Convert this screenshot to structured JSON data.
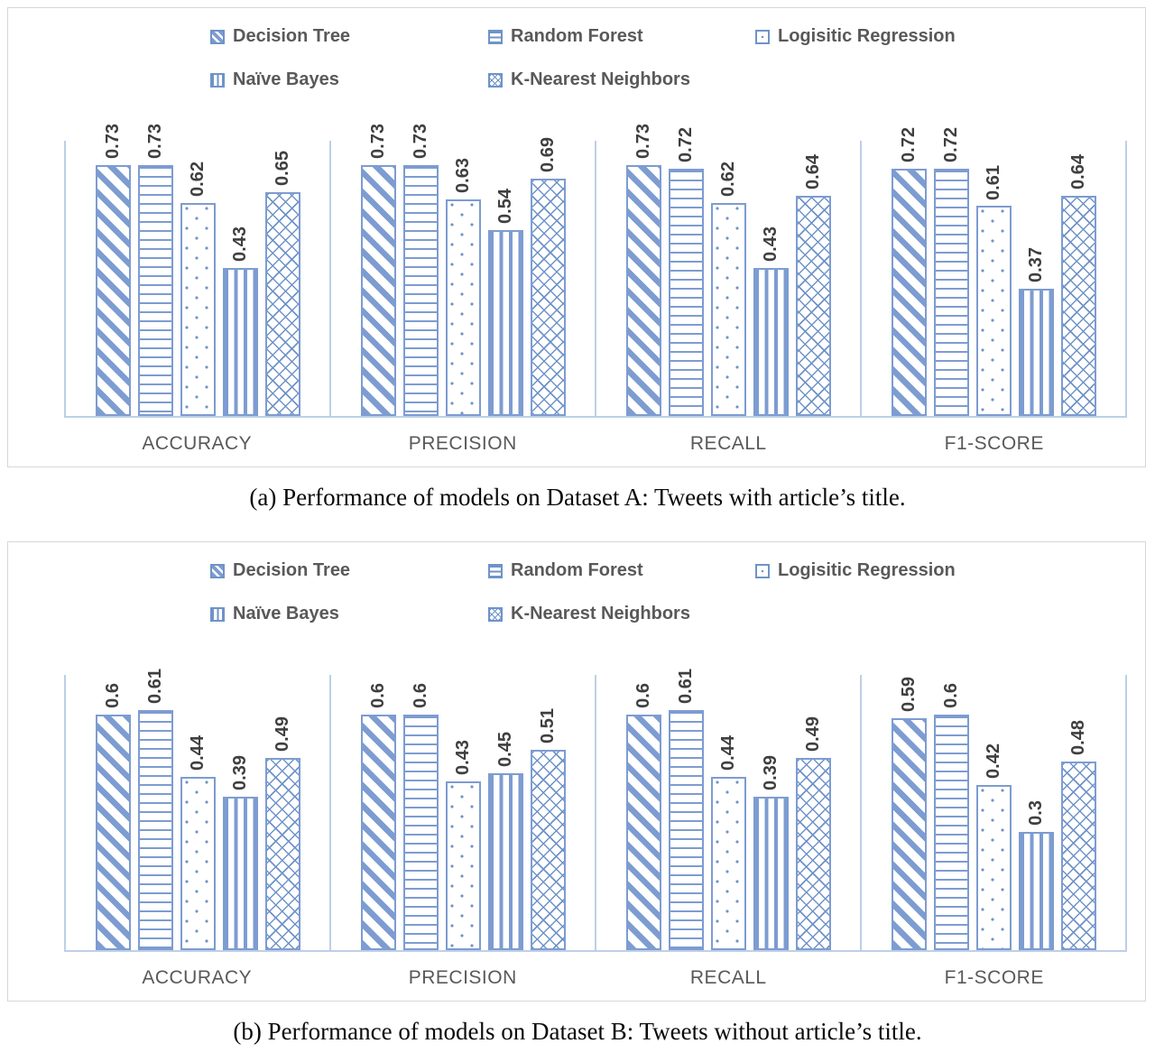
{
  "colors": {
    "bar_blue": "#7d9cd1",
    "bar_blue_dark": "#6f93c8",
    "axis_light_blue": "#bdcfe8",
    "label_gray": "#595959",
    "value_label_gray": "#3f3f3f",
    "panel_border_gray": "#d6d6d6"
  },
  "legend": [
    {
      "label": "Decision Tree",
      "pattern": "diagonal"
    },
    {
      "label": "Random Forest",
      "pattern": "hlines"
    },
    {
      "label": "Logisitic Regression",
      "pattern": "dots"
    },
    {
      "label": "Naïve Bayes",
      "pattern": "vlines"
    },
    {
      "label": "K-Nearest Neighbors",
      "pattern": "cross"
    }
  ],
  "chart_data": [
    {
      "type": "bar",
      "id": "a",
      "caption": "(a) Performance of models on Dataset A: Tweets with article’s title.",
      "categories": [
        "ACCURACY",
        "PRECISION",
        "RECALL",
        "F1-SCORE"
      ],
      "ylim": [
        0,
        0.8
      ],
      "grid": false,
      "legend_position": "top",
      "series": [
        {
          "name": "Decision Tree",
          "pattern": "diagonal",
          "values": [
            0.73,
            0.73,
            0.73,
            0.72
          ]
        },
        {
          "name": "Random Forest",
          "pattern": "hlines",
          "values": [
            0.73,
            0.73,
            0.72,
            0.72
          ]
        },
        {
          "name": "Logisitic Regression",
          "pattern": "dots",
          "values": [
            0.62,
            0.63,
            0.62,
            0.61
          ]
        },
        {
          "name": "Naïve Bayes",
          "pattern": "vlines",
          "values": [
            0.43,
            0.54,
            0.43,
            0.37
          ]
        },
        {
          "name": "K-Nearest Neighbors",
          "pattern": "cross",
          "values": [
            0.65,
            0.69,
            0.64,
            0.64
          ]
        }
      ]
    },
    {
      "type": "bar",
      "id": "b",
      "caption": "(b) Performance of models on Dataset B: Tweets without article’s title.",
      "categories": [
        "ACCURACY",
        "PRECISION",
        "RECALL",
        "F1-SCORE"
      ],
      "ylim": [
        0,
        0.7
      ],
      "grid": false,
      "legend_position": "top",
      "series": [
        {
          "name": "Decision Tree",
          "pattern": "diagonal",
          "values": [
            0.6,
            0.6,
            0.6,
            0.59
          ]
        },
        {
          "name": "Random Forest",
          "pattern": "hlines",
          "values": [
            0.61,
            0.6,
            0.61,
            0.6
          ]
        },
        {
          "name": "Logisitic Regression",
          "pattern": "dots",
          "values": [
            0.44,
            0.43,
            0.44,
            0.42
          ]
        },
        {
          "name": "Naïve Bayes",
          "pattern": "vlines",
          "values": [
            0.39,
            0.45,
            0.39,
            0.3
          ]
        },
        {
          "name": "K-Nearest Neighbors",
          "pattern": "cross",
          "values": [
            0.49,
            0.51,
            0.49,
            0.48
          ]
        }
      ]
    }
  ]
}
